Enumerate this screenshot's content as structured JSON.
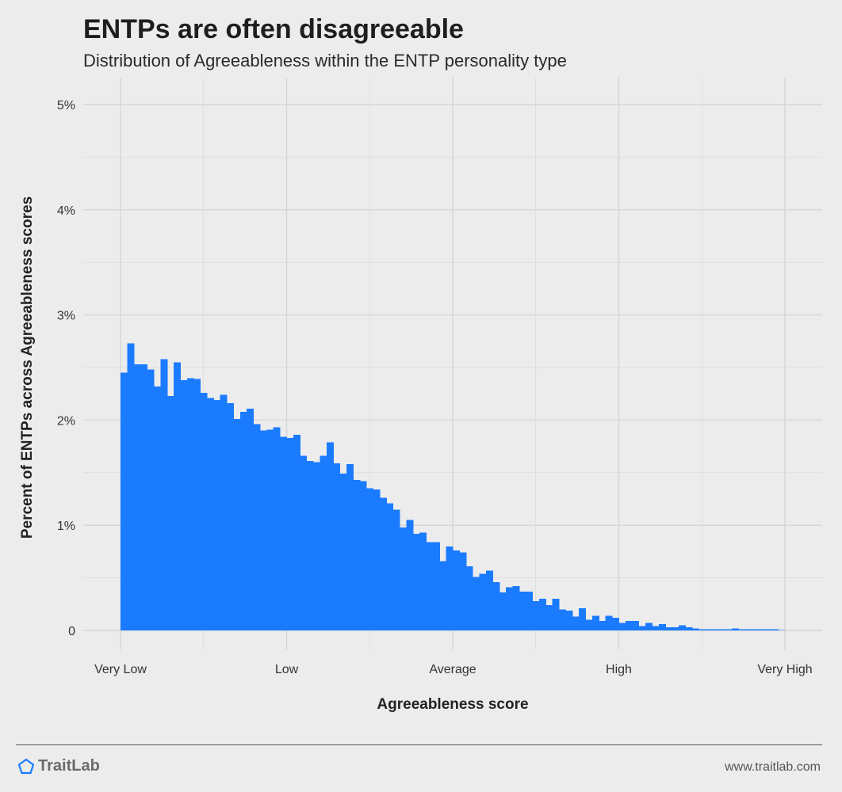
{
  "colors": {
    "bar": "#1b7bff",
    "grid": "#d6d6d6",
    "background": "#ececec",
    "logo": "#1b7bff"
  },
  "header": {
    "title": "ENTPs are often disagreeable",
    "subtitle": "Distribution of Agreeableness within the ENTP personality type"
  },
  "footer": {
    "brand": "TraitLab",
    "brand_icon": "pentagon-logo-icon",
    "website": "www.traitlab.com"
  },
  "chart_data": {
    "type": "bar",
    "title": "ENTPs are often disagreeable",
    "subtitle": "Distribution of Agreeableness within the ENTP personality type",
    "xlabel": "Agreeableness score",
    "ylabel": "Percent of ENTPs across Agreeableness scores",
    "xlim": [
      0,
      100
    ],
    "ylim": [
      0,
      5
    ],
    "x_ticks": [
      {
        "value": 0,
        "label": "Very Low"
      },
      {
        "value": 25,
        "label": "Low"
      },
      {
        "value": 50,
        "label": "Average"
      },
      {
        "value": 75,
        "label": "High"
      },
      {
        "value": 100,
        "label": "Very High"
      }
    ],
    "y_ticks": [
      {
        "value": 0,
        "label": "0"
      },
      {
        "value": 1,
        "label": "1%"
      },
      {
        "value": 2,
        "label": "2%"
      },
      {
        "value": 3,
        "label": "3%"
      },
      {
        "value": 4,
        "label": "4%"
      },
      {
        "value": 5,
        "label": "5%"
      }
    ],
    "grid": true,
    "legend": "none",
    "bin_start": 0,
    "bin_width": 1,
    "values": [
      2.45,
      2.73,
      2.53,
      2.53,
      2.48,
      2.32,
      2.58,
      2.23,
      2.55,
      2.38,
      2.4,
      2.39,
      2.26,
      2.21,
      2.19,
      2.24,
      2.16,
      2.01,
      2.08,
      2.11,
      1.96,
      1.9,
      1.91,
      1.93,
      1.84,
      1.83,
      1.86,
      1.66,
      1.61,
      1.6,
      1.66,
      1.79,
      1.59,
      1.49,
      1.58,
      1.43,
      1.42,
      1.35,
      1.34,
      1.26,
      1.21,
      1.15,
      0.98,
      1.05,
      0.92,
      0.93,
      0.84,
      0.84,
      0.66,
      0.8,
      0.76,
      0.74,
      0.61,
      0.51,
      0.54,
      0.57,
      0.46,
      0.36,
      0.41,
      0.42,
      0.37,
      0.37,
      0.28,
      0.3,
      0.24,
      0.3,
      0.2,
      0.19,
      0.13,
      0.21,
      0.1,
      0.14,
      0.09,
      0.14,
      0.12,
      0.07,
      0.09,
      0.09,
      0.04,
      0.07,
      0.04,
      0.06,
      0.03,
      0.03,
      0.05,
      0.03,
      0.02,
      0.01,
      0.01,
      0.01,
      0.01,
      0.01,
      0.02,
      0.01,
      0.01,
      0.01,
      0.01,
      0.01,
      0.01,
      0.005
    ]
  }
}
